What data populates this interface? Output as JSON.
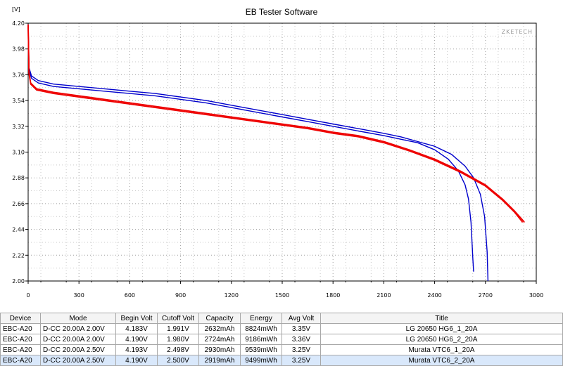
{
  "chart_data": {
    "type": "line",
    "title": "EB Tester Software",
    "ylabel": "[V]",
    "xlabel": "",
    "watermark": "ZKETECH",
    "xlim": [
      0,
      3000
    ],
    "ylim": [
      2.0,
      4.2
    ],
    "x_ticks": [
      "0",
      "300",
      "600",
      "900",
      "1200",
      "1500",
      "1800",
      "2100",
      "2400",
      "2700",
      "3000"
    ],
    "y_ticks": [
      "2.00",
      "2.22",
      "2.44",
      "2.66",
      "2.88",
      "3.10",
      "3.32",
      "3.54",
      "3.76",
      "3.98",
      "4.20"
    ],
    "grid": true,
    "series": [
      {
        "color": "#0000cc",
        "points": [
          [
            0,
            4.18
          ],
          [
            5,
            3.8
          ],
          [
            20,
            3.73
          ],
          [
            60,
            3.69
          ],
          [
            150,
            3.66
          ],
          [
            300,
            3.64
          ],
          [
            450,
            3.62
          ],
          [
            600,
            3.6
          ],
          [
            750,
            3.58
          ],
          [
            900,
            3.55
          ],
          [
            1050,
            3.52
          ],
          [
            1200,
            3.48
          ],
          [
            1350,
            3.44
          ],
          [
            1500,
            3.4
          ],
          [
            1650,
            3.36
          ],
          [
            1800,
            3.32
          ],
          [
            1950,
            3.28
          ],
          [
            2100,
            3.24
          ],
          [
            2200,
            3.21
          ],
          [
            2300,
            3.18
          ],
          [
            2400,
            3.12
          ],
          [
            2480,
            3.04
          ],
          [
            2540,
            2.94
          ],
          [
            2580,
            2.82
          ],
          [
            2600,
            2.7
          ],
          [
            2615,
            2.5
          ],
          [
            2625,
            2.2
          ],
          [
            2630,
            2.08
          ]
        ]
      },
      {
        "color": "#0000cc",
        "points": [
          [
            0,
            4.19
          ],
          [
            5,
            3.82
          ],
          [
            20,
            3.75
          ],
          [
            60,
            3.71
          ],
          [
            150,
            3.68
          ],
          [
            300,
            3.66
          ],
          [
            450,
            3.64
          ],
          [
            600,
            3.62
          ],
          [
            750,
            3.6
          ],
          [
            900,
            3.57
          ],
          [
            1050,
            3.54
          ],
          [
            1200,
            3.5
          ],
          [
            1350,
            3.46
          ],
          [
            1500,
            3.42
          ],
          [
            1650,
            3.38
          ],
          [
            1800,
            3.34
          ],
          [
            1950,
            3.3
          ],
          [
            2100,
            3.26
          ],
          [
            2200,
            3.23
          ],
          [
            2300,
            3.19
          ],
          [
            2400,
            3.15
          ],
          [
            2500,
            3.08
          ],
          [
            2580,
            2.98
          ],
          [
            2630,
            2.88
          ],
          [
            2670,
            2.74
          ],
          [
            2695,
            2.55
          ],
          [
            2710,
            2.25
          ],
          [
            2715,
            2.0
          ]
        ]
      },
      {
        "color": "#ee0000",
        "points": [
          [
            0,
            4.19
          ],
          [
            5,
            3.78
          ],
          [
            15,
            3.69
          ],
          [
            50,
            3.64
          ],
          [
            150,
            3.61
          ],
          [
            300,
            3.58
          ],
          [
            450,
            3.55
          ],
          [
            600,
            3.52
          ],
          [
            750,
            3.49
          ],
          [
            900,
            3.46
          ],
          [
            1050,
            3.43
          ],
          [
            1200,
            3.4
          ],
          [
            1350,
            3.37
          ],
          [
            1500,
            3.34
          ],
          [
            1650,
            3.31
          ],
          [
            1800,
            3.27
          ],
          [
            1950,
            3.24
          ],
          [
            2100,
            3.19
          ],
          [
            2250,
            3.12
          ],
          [
            2400,
            3.04
          ],
          [
            2550,
            2.94
          ],
          [
            2700,
            2.82
          ],
          [
            2800,
            2.7
          ],
          [
            2870,
            2.6
          ],
          [
            2920,
            2.52
          ],
          [
            2930,
            2.5
          ]
        ]
      },
      {
        "color": "#ee0000",
        "points": [
          [
            0,
            4.18
          ],
          [
            5,
            3.77
          ],
          [
            15,
            3.68
          ],
          [
            50,
            3.63
          ],
          [
            150,
            3.6
          ],
          [
            300,
            3.57
          ],
          [
            450,
            3.54
          ],
          [
            600,
            3.51
          ],
          [
            750,
            3.48
          ],
          [
            900,
            3.45
          ],
          [
            1050,
            3.42
          ],
          [
            1200,
            3.39
          ],
          [
            1350,
            3.36
          ],
          [
            1500,
            3.33
          ],
          [
            1650,
            3.3
          ],
          [
            1800,
            3.26
          ],
          [
            1950,
            3.23
          ],
          [
            2100,
            3.18
          ],
          [
            2250,
            3.11
          ],
          [
            2400,
            3.03
          ],
          [
            2550,
            2.93
          ],
          [
            2700,
            2.81
          ],
          [
            2800,
            2.69
          ],
          [
            2870,
            2.59
          ],
          [
            2915,
            2.51
          ],
          [
            2919,
            2.5
          ]
        ]
      }
    ]
  },
  "table": {
    "headers": [
      "Device",
      "Mode",
      "Begin Volt",
      "Cutoff Volt",
      "Capacity",
      "Energy",
      "Avg Volt",
      "Title"
    ],
    "rows": [
      [
        "EBC-A20",
        "D-CC  20.00A  2.00V",
        "4.183V",
        "1.991V",
        "2632mAh",
        "8824mWh",
        "3.35V",
        "LG 20650 HG6_1_20A"
      ],
      [
        "EBC-A20",
        "D-CC  20.00A  2.00V",
        "4.190V",
        "1.980V",
        "2724mAh",
        "9186mWh",
        "3.36V",
        "LG 20650 HG6_2_20A"
      ],
      [
        "EBC-A20",
        "D-CC  20.00A  2.50V",
        "4.193V",
        "2.498V",
        "2930mAh",
        "9539mWh",
        "3.25V",
        "Murata VTC6_1_20A"
      ],
      [
        "EBC-A20",
        "D-CC  20.00A  2.50V",
        "4.190V",
        "2.500V",
        "2919mAh",
        "9499mWh",
        "3.25V",
        "Murata VTC6_2_20A"
      ]
    ]
  }
}
